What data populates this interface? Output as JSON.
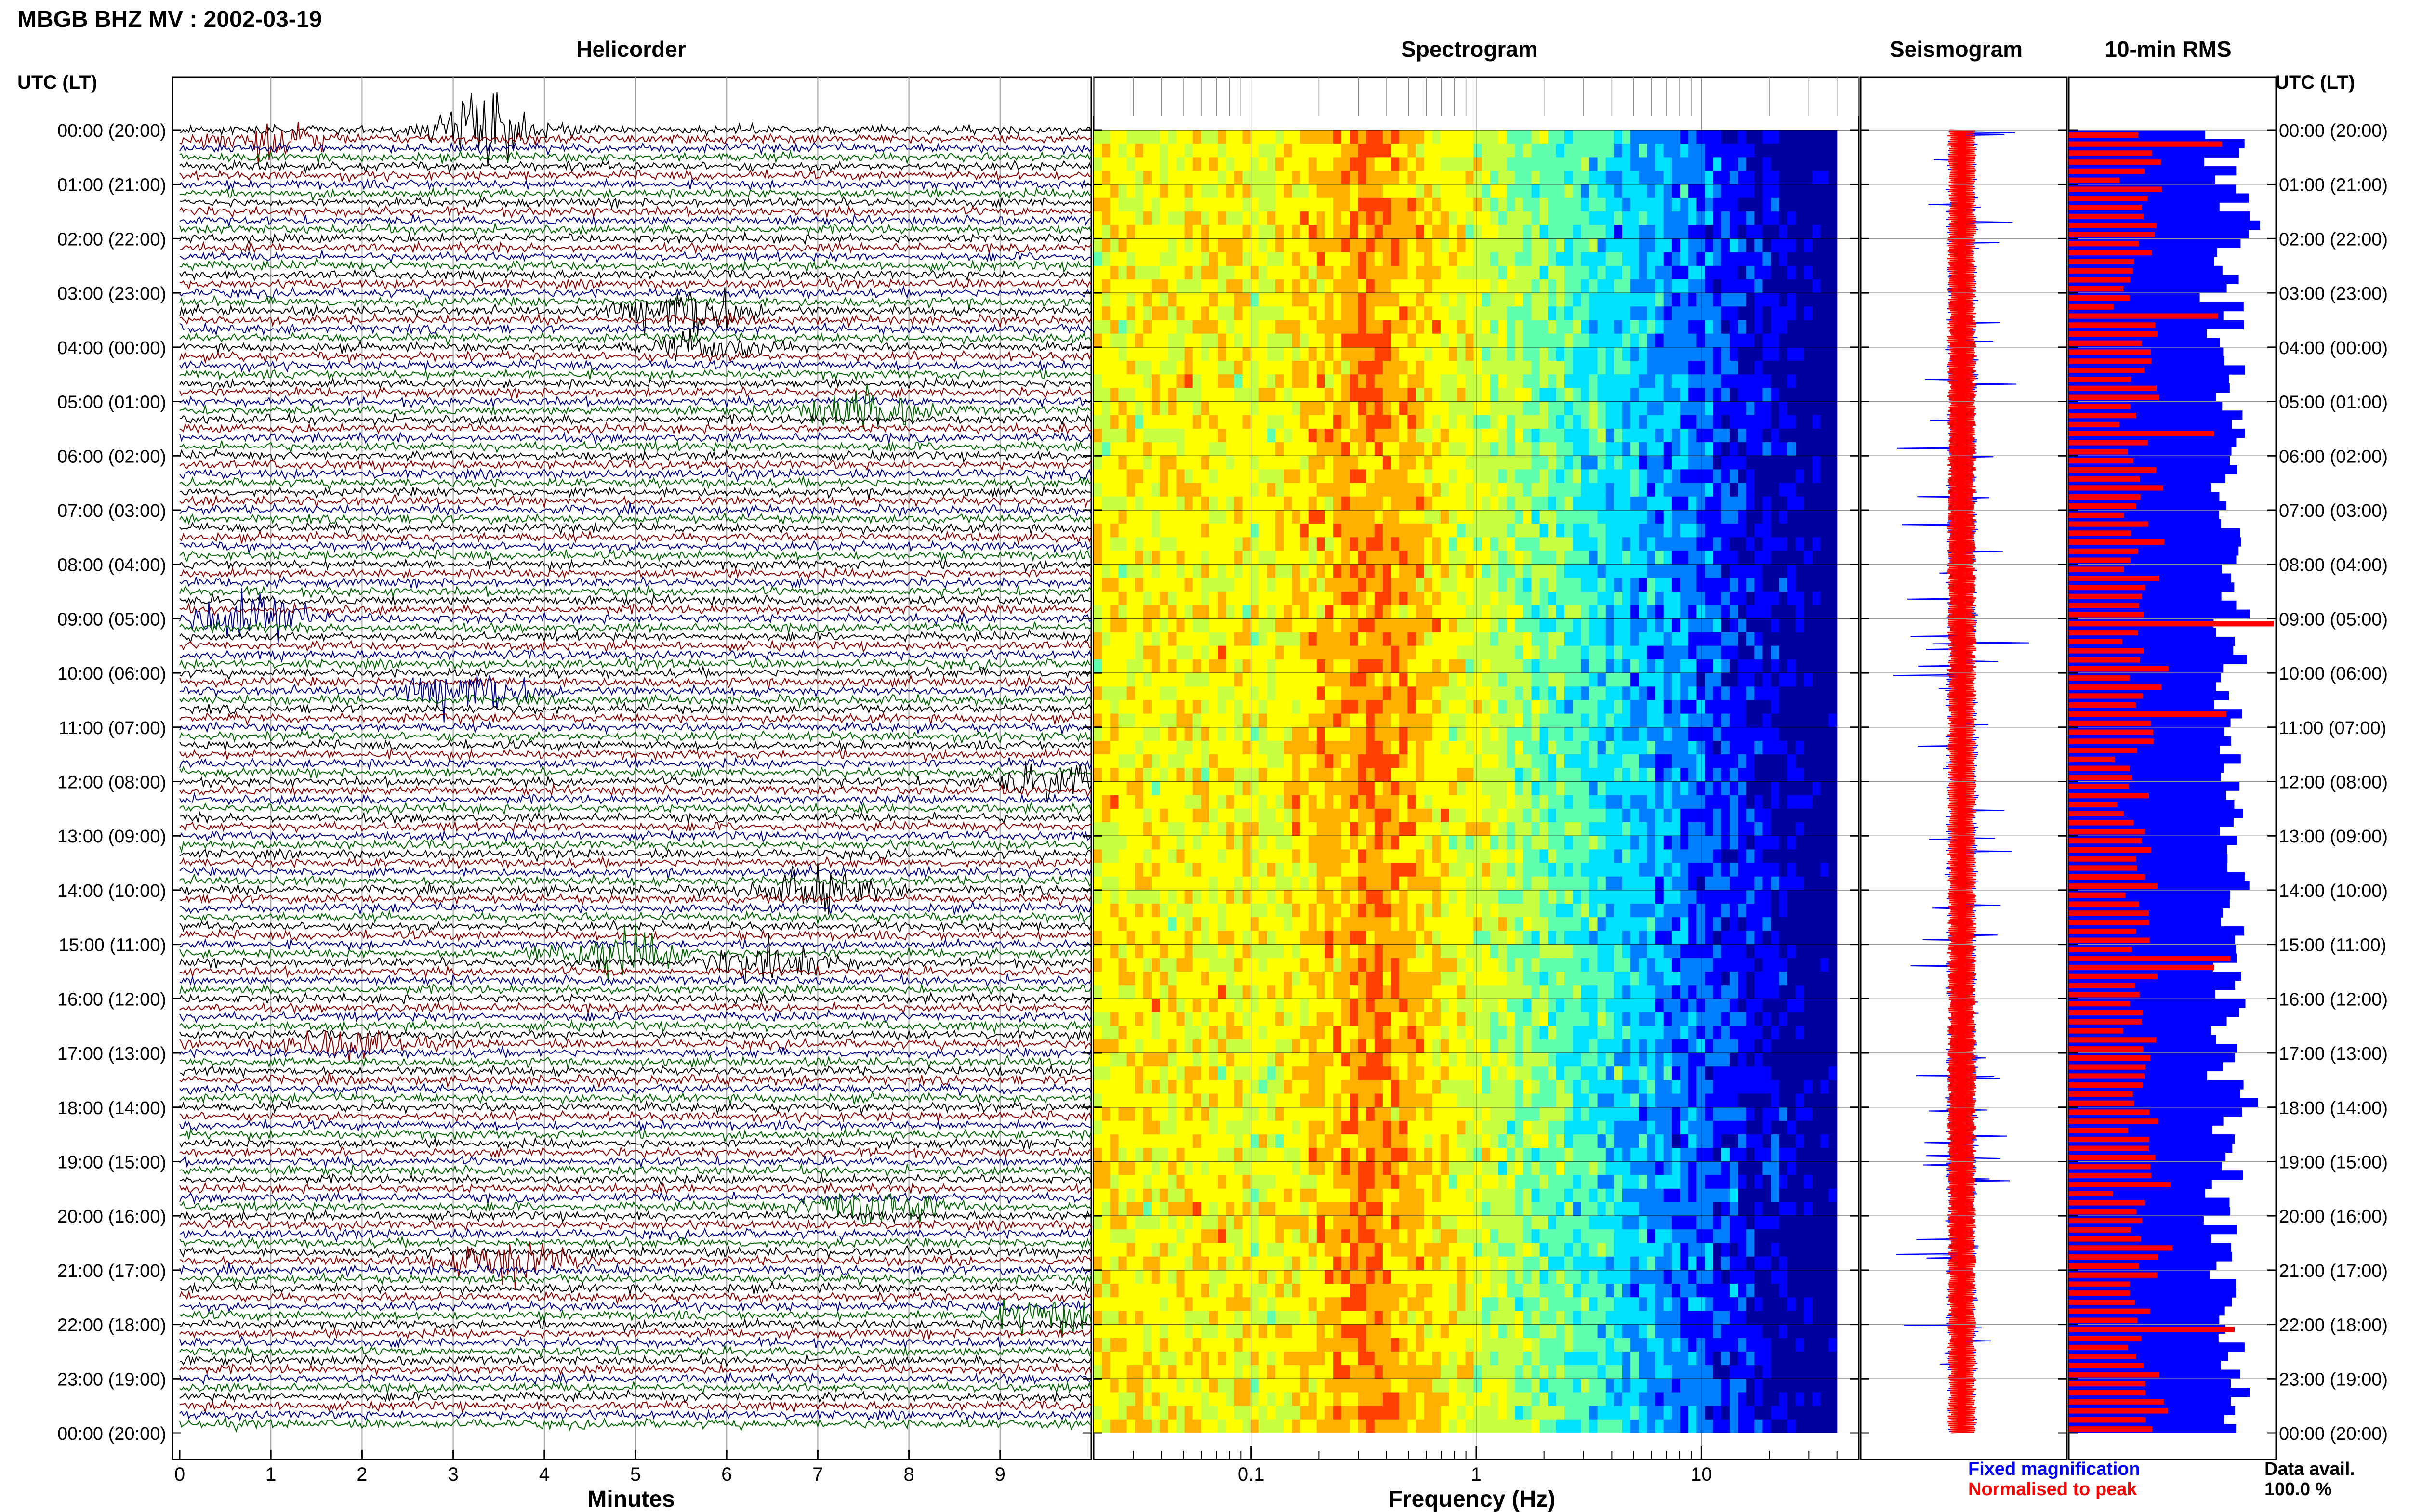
{
  "header": {
    "title": "MBGB BHZ MV : 2002-03-19",
    "utc_label": "UTC (LT)",
    "utc_label_right": "UTC (LT)"
  },
  "panels": {
    "helicorder": "Helicorder",
    "spectrogram": "Spectrogram",
    "seismogram": "Seismogram",
    "rms": "10-min RMS"
  },
  "time_labels": [
    "00:00 (20:00)",
    "01:00 (21:00)",
    "02:00 (22:00)",
    "03:00 (23:00)",
    "04:00 (00:00)",
    "05:00 (01:00)",
    "06:00 (02:00)",
    "07:00 (03:00)",
    "08:00 (04:00)",
    "09:00 (05:00)",
    "10:00 (06:00)",
    "11:00 (07:00)",
    "12:00 (08:00)",
    "13:00 (09:00)",
    "14:00 (10:00)",
    "15:00 (11:00)",
    "16:00 (12:00)",
    "17:00 (13:00)",
    "18:00 (14:00)",
    "19:00 (15:00)",
    "20:00 (16:00)",
    "21:00 (17:00)",
    "22:00 (18:00)",
    "23:00 (19:00)",
    "00:00 (20:00)"
  ],
  "legend": {
    "fixed": "Fixed magnification",
    "normalised": "Normalised to peak",
    "fixed_color": "#0000ff",
    "normalised_color": "#ff0000"
  },
  "availability": {
    "label": "Data avail.",
    "value": "100.0 %"
  },
  "colors": {
    "trace_cycle": [
      "#000000",
      "#8b0000",
      "#00008b",
      "#006400"
    ],
    "rms_fixed": "#0000ff",
    "rms_normalised": "#ff0000"
  },
  "chart_data": [
    {
      "type": "line",
      "name": "helicorder",
      "title": "Helicorder",
      "xlabel": "Minutes",
      "x_ticks": [
        0,
        1,
        2,
        3,
        4,
        5,
        6,
        7,
        8,
        9
      ],
      "xlim": [
        0,
        10
      ],
      "rows": 144,
      "row_minutes": 10,
      "events": [
        {
          "row": 0,
          "minute": 3.4,
          "amp": 3.0
        },
        {
          "row": 1,
          "minute": 1.0,
          "amp": 1.6
        },
        {
          "row": 20,
          "minute": 5.6,
          "amp": 2.8
        },
        {
          "row": 24,
          "minute": 5.8,
          "amp": 1.2
        },
        {
          "row": 31,
          "minute": 7.5,
          "amp": 1.8
        },
        {
          "row": 54,
          "minute": 0.8,
          "amp": 2.6
        },
        {
          "row": 62,
          "minute": 3.2,
          "amp": 2.4
        },
        {
          "row": 72,
          "minute": 9.6,
          "amp": 1.6
        },
        {
          "row": 84,
          "minute": 7.0,
          "amp": 1.8
        },
        {
          "row": 91,
          "minute": 4.8,
          "amp": 2.2
        },
        {
          "row": 92,
          "minute": 6.5,
          "amp": 1.9
        },
        {
          "row": 101,
          "minute": 1.8,
          "amp": 1.4
        },
        {
          "row": 119,
          "minute": 7.6,
          "amp": 2.0
        },
        {
          "row": 125,
          "minute": 3.6,
          "amp": 2.2
        },
        {
          "row": 131,
          "minute": 9.5,
          "amp": 1.6
        }
      ]
    },
    {
      "type": "heatmap",
      "name": "spectrogram",
      "title": "Spectrogram",
      "xlabel": "Frequency (Hz)",
      "x_scale": "log",
      "x_tick_labels": [
        "0.1",
        "1",
        "10"
      ],
      "xlim": [
        0.02,
        50
      ],
      "content_xlim": [
        0.02,
        40
      ],
      "peak_band_hz": [
        0.2,
        0.6
      ],
      "colormap": [
        "#0000a0",
        "#0000ff",
        "#0080ff",
        "#00e0ff",
        "#60ffb0",
        "#c8ff40",
        "#ffff00",
        "#ffb000",
        "#ff4000"
      ]
    },
    {
      "type": "line",
      "name": "seismogram",
      "title": "Seismogram",
      "series": [
        {
          "name": "Fixed magnification",
          "color": "#0000ff"
        },
        {
          "name": "Normalised to peak",
          "color": "#ff0000"
        }
      ]
    },
    {
      "type": "bar",
      "name": "10-min RMS",
      "title": "10-min RMS",
      "orientation": "horizontal",
      "bins": 144,
      "series": [
        {
          "name": "Fixed magnification",
          "color": "#0000ff",
          "mean": 0.78,
          "variation": 0.12
        },
        {
          "name": "Normalised to peak",
          "color": "#ff0000",
          "mean": 0.36,
          "variation": 0.1,
          "peaks": [
            {
              "bin": 1,
              "value": 0.74
            },
            {
              "bin": 20,
              "value": 0.72
            },
            {
              "bin": 33,
              "value": 0.7
            },
            {
              "bin": 54,
              "value": 0.99
            },
            {
              "bin": 64,
              "value": 0.76
            },
            {
              "bin": 91,
              "value": 0.78
            },
            {
              "bin": 92,
              "value": 0.7
            },
            {
              "bin": 132,
              "value": 0.8
            }
          ]
        }
      ]
    }
  ]
}
